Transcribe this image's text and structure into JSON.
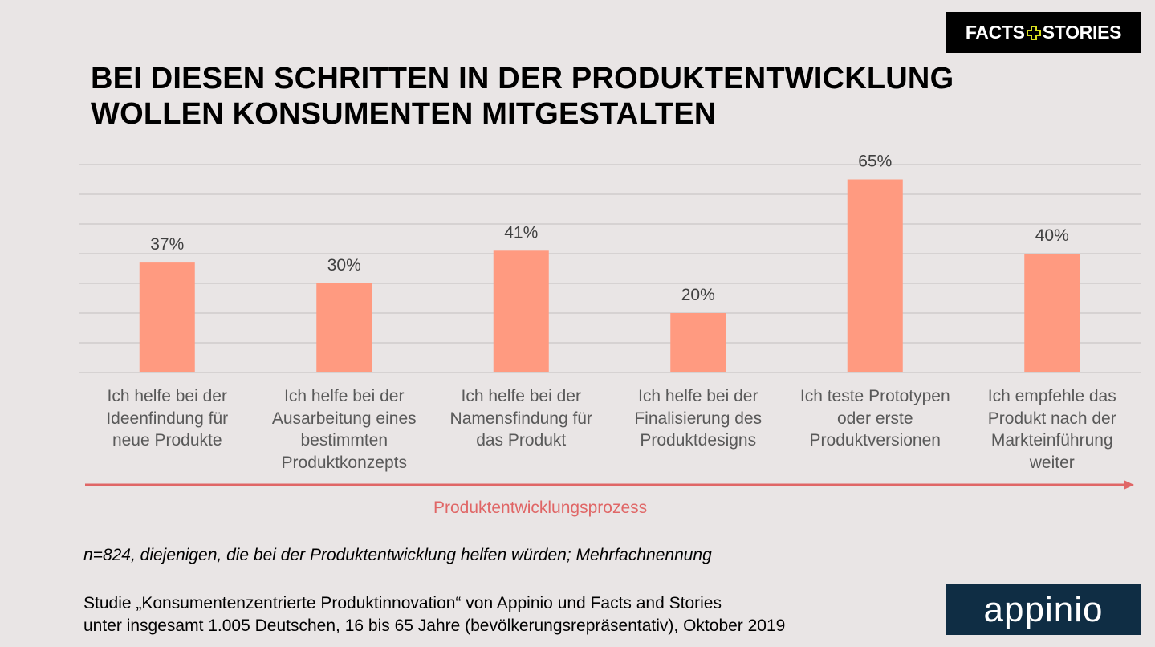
{
  "brand_logo": {
    "left": "FACTS",
    "right": "STORIES",
    "accent_color": "#d9e021"
  },
  "partner_logo": {
    "text": "appinio",
    "bg_color": "#0f2d44"
  },
  "title_lines": [
    "BEI DIESEN SCHRITTEN IN DER PRODUKTENTWICKLUNG",
    "WOLLEN KONSUMENTEN MITGESTALTEN"
  ],
  "chart_data": {
    "type": "bar",
    "title": "BEI DIESEN SCHRITTEN IN DER PRODUKTENTWICKLUNG WOLLEN KONSUMENTEN MITGESTALTEN",
    "categories": [
      "Ich helfe bei der Ideenfindung für neue Produkte",
      "Ich helfe bei der Ausarbeitung eines bestimmten Produktkonzepts",
      "Ich helfe bei der Namensfindung für das Produkt",
      "Ich helfe bei der Finalisierung des Produktdesigns",
      "Ich teste Prototypen oder erste Produktversionen",
      "Ich empfehle das Produkt nach der Markteinführung weiter"
    ],
    "category_lines": [
      [
        "Ich helfe bei der",
        "Ideenfindung für",
        "neue Produkte"
      ],
      [
        "Ich helfe bei der",
        "Ausarbeitung eines",
        "bestimmten",
        "Produktkonzepts"
      ],
      [
        "Ich helfe bei der",
        "Namensfindung für",
        "das Produkt"
      ],
      [
        "Ich helfe bei der",
        "Finalisierung des",
        "Produktdesigns"
      ],
      [
        "Ich teste Prototypen",
        "oder erste",
        "Produktversionen"
      ],
      [
        "Ich empfehle das",
        "Produkt nach der",
        "Markteinführung",
        "weiter"
      ]
    ],
    "values": [
      37,
      30,
      41,
      20,
      65,
      40
    ],
    "data_labels": [
      "37%",
      "30%",
      "41%",
      "20%",
      "65%",
      "40%"
    ],
    "unit": "%",
    "xlabel": "Produktentwicklungsprozess",
    "ylabel": "",
    "ylim": [
      0,
      70
    ],
    "gridlines_every": 10,
    "grid": true,
    "y_tick_labels_shown": false,
    "bar_color": "#ff9a80",
    "arrow_color": "#e06666"
  },
  "footnote": "n=824, diejenigen, die bei der Produktentwicklung helfen würden; Mehrfachnennung",
  "source_lines": [
    "Studie „Konsumentenzentrierte Produktinnovation“ von Appinio und Facts and Stories",
    "unter insgesamt 1.005 Deutschen, 16 bis 65 Jahre (bevölkerungsrepräsentativ), Oktober 2019"
  ]
}
